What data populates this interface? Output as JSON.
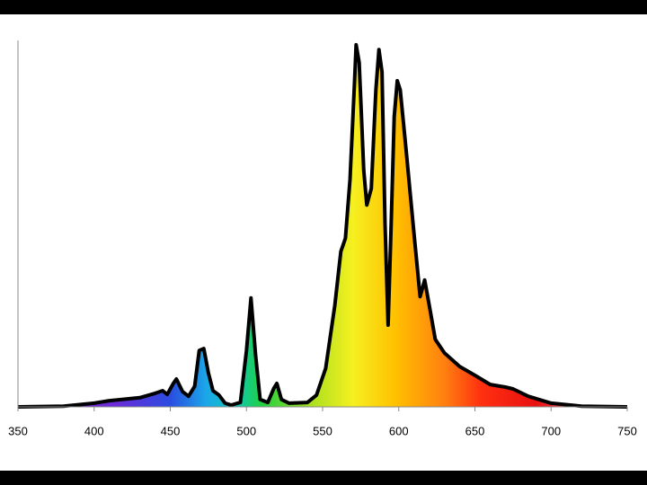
{
  "chart_data": {
    "type": "line",
    "x": [
      350,
      380,
      400,
      410,
      430,
      440,
      445,
      448,
      452,
      454,
      458,
      462,
      466,
      469,
      472,
      475,
      478,
      482,
      486,
      490,
      496,
      500,
      503,
      506,
      509,
      514,
      518,
      520,
      523,
      528,
      540,
      546,
      552,
      558,
      562,
      565,
      568,
      571,
      572,
      574,
      577,
      579,
      582,
      585,
      587,
      589,
      591,
      593,
      595,
      597,
      599,
      601,
      605,
      610,
      614,
      617,
      620,
      624,
      630,
      640,
      650,
      660,
      670,
      675,
      685,
      700,
      720,
      750
    ],
    "series": [
      {
        "color": "#000000",
        "values": [
          0,
          0.2,
          1,
          1.7,
          2.5,
          3.7,
          4.4,
          3.4,
          6.4,
          7.6,
          4.2,
          2.9,
          5.6,
          15.4,
          15.9,
          9.3,
          4.4,
          3.2,
          1,
          0.5,
          1.2,
          15.4,
          29.7,
          14.2,
          2,
          1.2,
          5.1,
          6.4,
          2,
          1,
          1.2,
          3.2,
          10.5,
          27.7,
          42.4,
          46,
          62,
          89,
          98.8,
          94,
          64.5,
          55.1,
          59.6,
          86.5,
          97.5,
          91.4,
          49.8,
          22.3,
          49.8,
          79.2,
          89,
          86.5,
          69.4,
          47.3,
          30.1,
          34.6,
          27.7,
          18.4,
          14.7,
          11,
          8.6,
          6.1,
          5.4,
          4.9,
          2.9,
          1,
          0.2,
          0
        ]
      }
    ],
    "xlim": [
      350,
      750
    ],
    "xticks": [
      350,
      400,
      450,
      500,
      550,
      600,
      650,
      700,
      750
    ],
    "ylim": [
      0,
      100
    ]
  }
}
